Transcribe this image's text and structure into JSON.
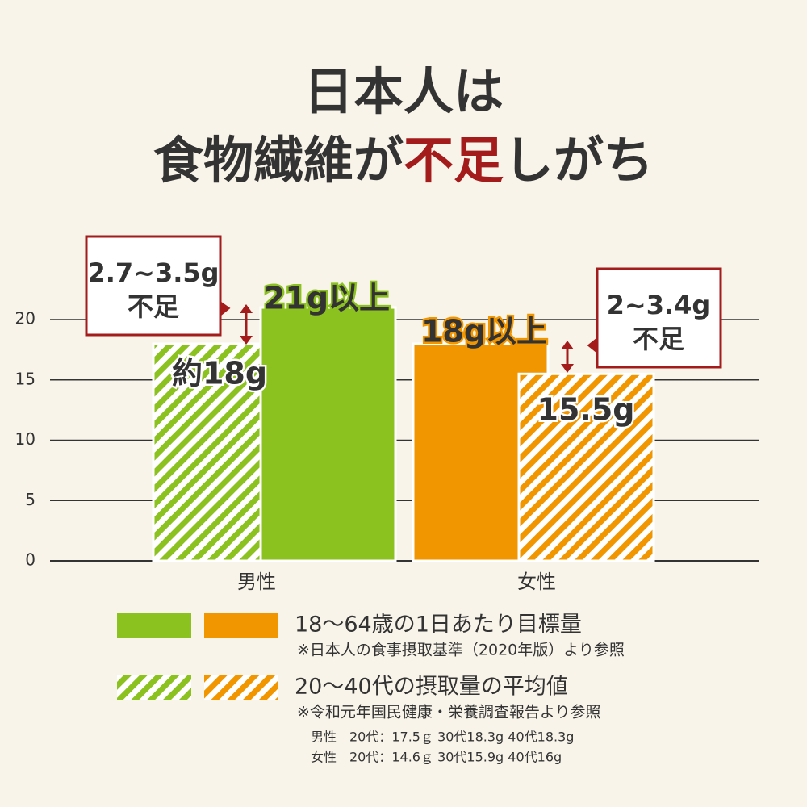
{
  "chart_data": {
    "type": "bar",
    "title_lines": [
      [
        "日本人は"
      ],
      [
        "食物繊維が",
        "不足",
        "しがち"
      ]
    ],
    "title_highlight_color": "#a31b1b",
    "categories": [
      "男性",
      "女性"
    ],
    "colors": [
      "#8cc220",
      "#f29600"
    ],
    "series": [
      {
        "name": "18〜64歳の1日あたり目標量",
        "note": "※日本人の食事摂取基準（2020年版）より参照",
        "hatched": false,
        "values": [
          21,
          18
        ],
        "value_labels": [
          "21g以上",
          "18g以上"
        ]
      },
      {
        "name": "20〜40代の摂取量の平均値",
        "note": "※令和元年国民健康・栄養調査報告より参照",
        "hatched": true,
        "values": [
          18,
          15.5
        ],
        "value_labels": [
          "約18g",
          "15.5g"
        ]
      }
    ],
    "annotations": [
      {
        "lines": [
          "2.7~3.5g",
          "不足"
        ]
      },
      {
        "lines": [
          "2~3.4g",
          "不足"
        ]
      }
    ],
    "footnotes": [
      "男性　20代：17.5ｇ 30代18.3g 40代18.3g",
      "女性　20代：14.6ｇ 30代15.9g 40代16g"
    ],
    "ylim": [
      0,
      20
    ],
    "yticks": [
      0,
      5,
      10,
      15,
      20
    ],
    "grid": true
  }
}
